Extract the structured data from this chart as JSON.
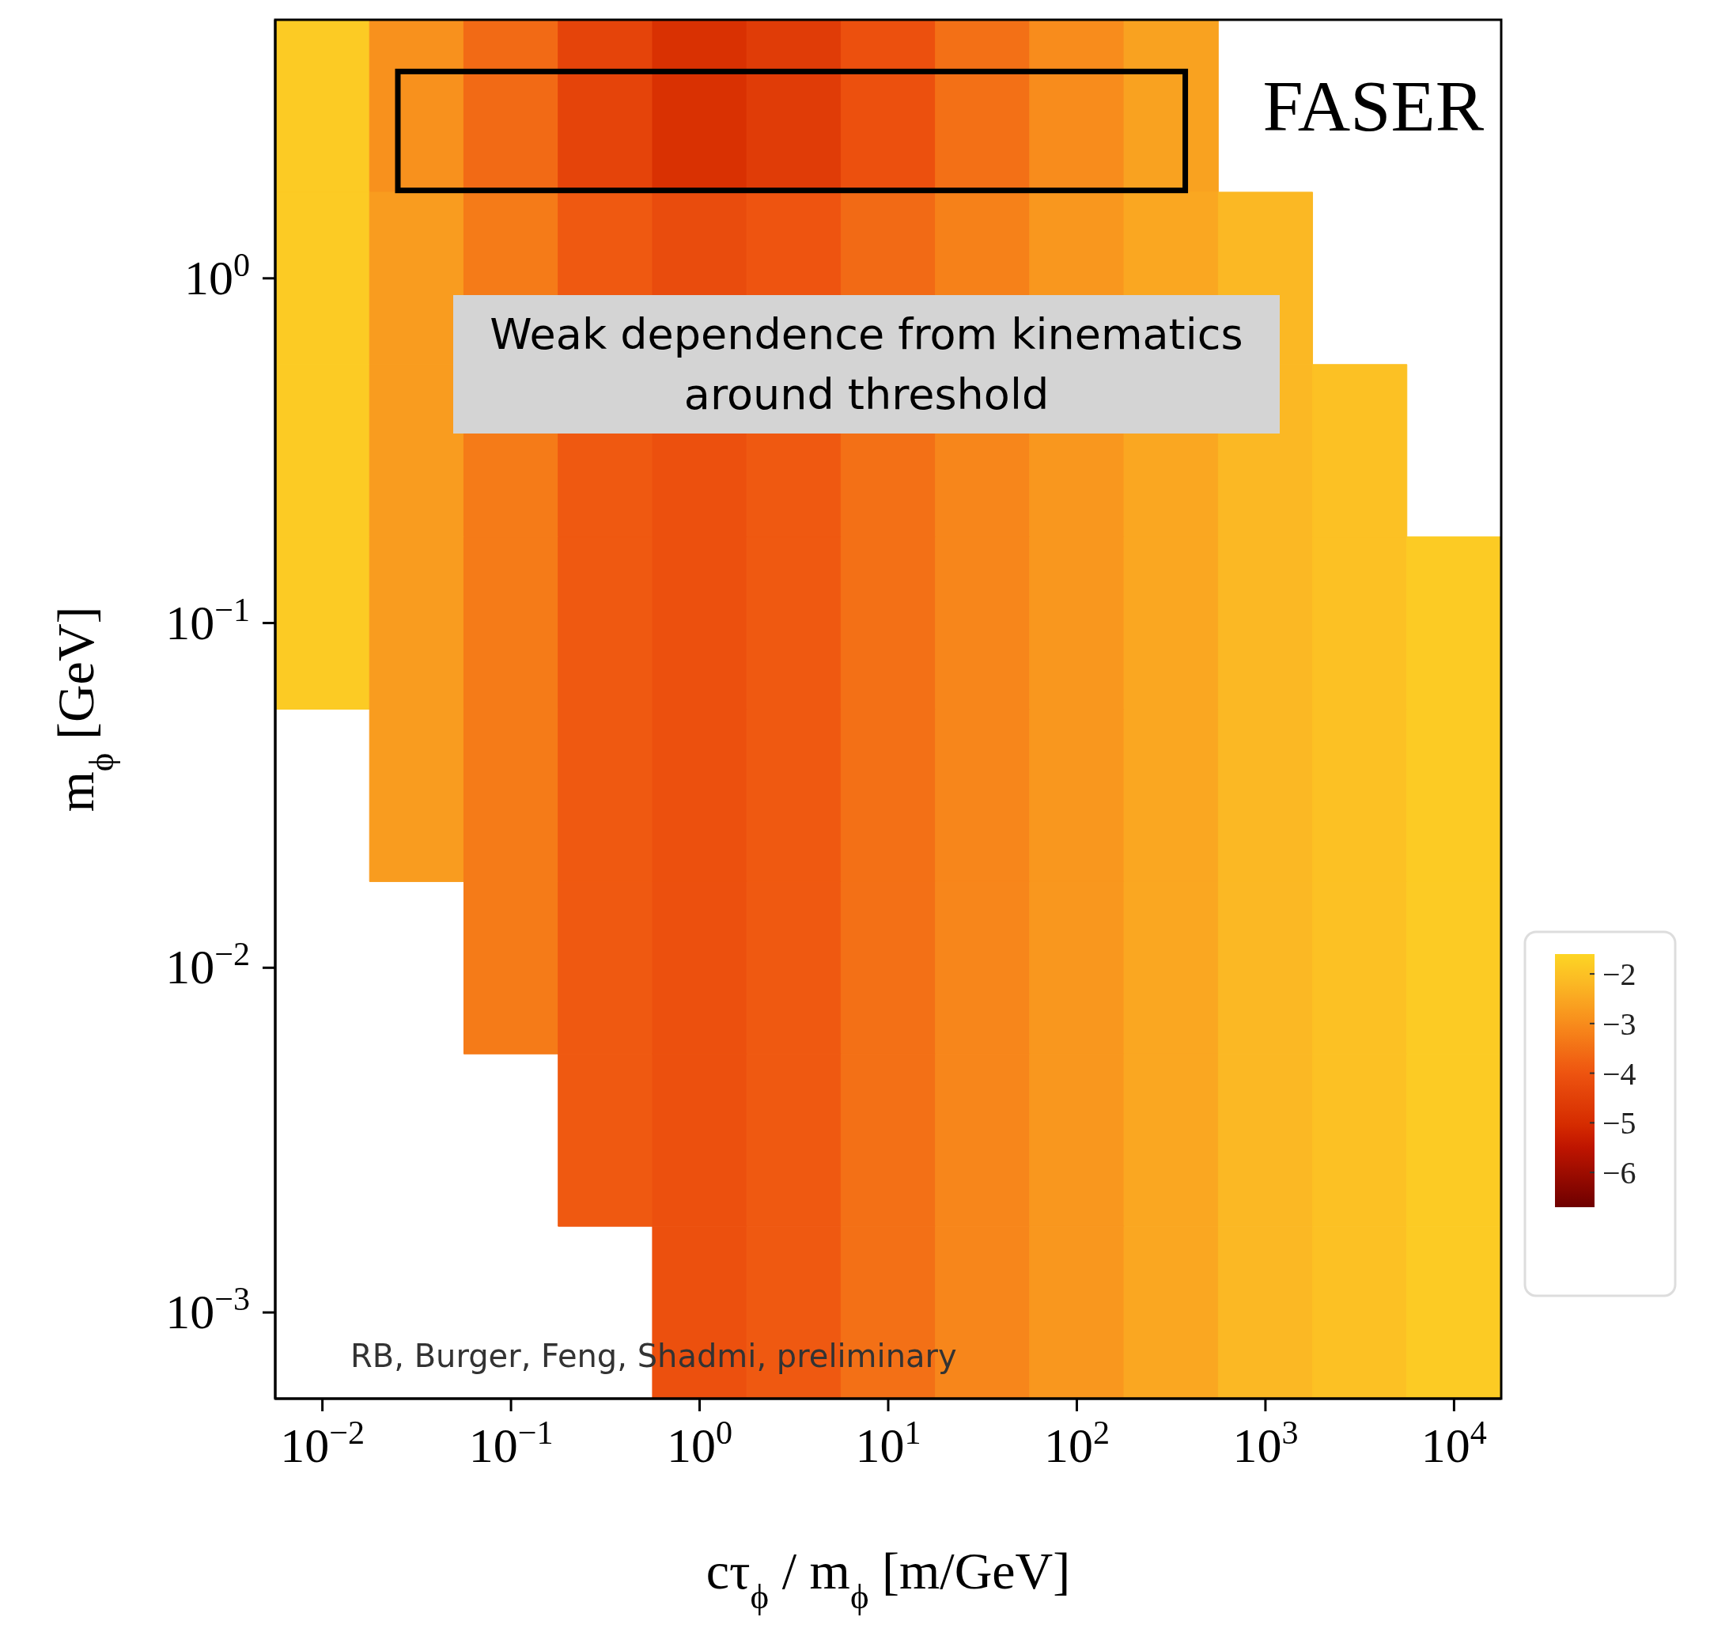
{
  "chart_data": {
    "type": "heatmap",
    "xlabel": "cτ$_{ϕ}$ / m$_{ϕ}$ [m/GeV]",
    "ylabel": "m$_{ϕ}$ [GeV]",
    "annotations": [
      "FASER",
      "Weak dependence from kinematics  around threshold",
      "RB, Burger, Feng, Shadmi, preliminary"
    ],
    "categories": [
      "10$^{−2}$",
      null,
      "10$^{−1}$",
      null,
      "10$^{0}$",
      null,
      "10$^{1}$",
      null,
      "10$^{2}$",
      null,
      "10$^{3}$",
      null,
      "10$^{4}$"
    ],
    "y_categories": [
      null,
      "10$^{0}$",
      null,
      "10$^{−1}$",
      null,
      "10$^{−2}$",
      null,
      "10$^{−3}$"
    ],
    "cells": [
      [
        -1.8,
        -2.9,
        -3.6,
        -4.4,
        -4.9,
        -4.6,
        -4.1,
        -3.5,
        -3.0,
        -2.6,
        null,
        null,
        null
      ],
      [
        -1.8,
        -2.7,
        -3.3,
        -3.9,
        -4.2,
        -4.0,
        -3.6,
        -3.2,
        -2.8,
        -2.5,
        -2.2,
        null,
        null
      ],
      [
        -1.8,
        -2.7,
        -3.3,
        -3.9,
        -4.1,
        -3.9,
        -3.5,
        -3.1,
        -2.8,
        -2.5,
        -2.2,
        -2.0,
        null
      ],
      [
        -1.8,
        -2.7,
        -3.3,
        -3.9,
        -4.1,
        -3.9,
        -3.5,
        -3.1,
        -2.8,
        -2.5,
        -2.2,
        -2.0,
        -1.8
      ],
      [
        null,
        -2.7,
        -3.3,
        -3.9,
        -4.1,
        -3.9,
        -3.5,
        -3.1,
        -2.8,
        -2.5,
        -2.2,
        -2.0,
        -1.8
      ],
      [
        null,
        null,
        -3.3,
        -3.9,
        -4.1,
        -3.9,
        -3.5,
        -3.1,
        -2.8,
        -2.5,
        -2.2,
        -2.0,
        -1.8
      ],
      [
        null,
        null,
        null,
        -3.9,
        -4.1,
        -3.9,
        -3.5,
        -3.1,
        -2.8,
        -2.5,
        -2.2,
        -2.0,
        -1.8
      ],
      [
        null,
        null,
        null,
        null,
        -4.1,
        -3.9,
        -3.5,
        -3.1,
        -2.8,
        -2.5,
        -2.2,
        -2.0,
        -1.8
      ]
    ],
    "clim": [
      -6.7,
      -1.6
    ],
    "cticks": [
      {
        "value": -6,
        "label": "−6"
      },
      {
        "value": -5,
        "label": "−5"
      },
      {
        "value": -4,
        "label": "−4"
      },
      {
        "value": -3,
        "label": "−3"
      },
      {
        "value": -2,
        "label": "−2"
      }
    ]
  }
}
